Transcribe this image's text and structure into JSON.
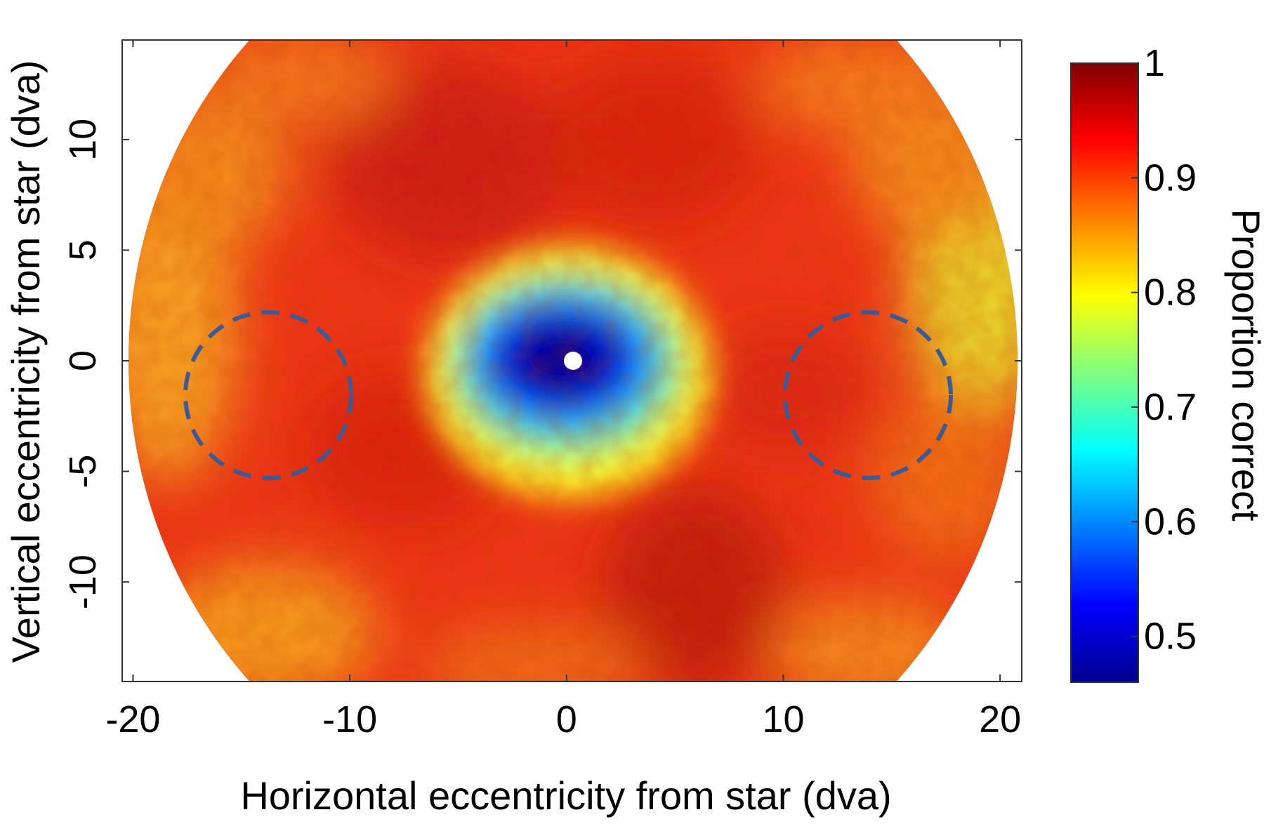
{
  "chart_data": {
    "type": "heatmap",
    "title": "",
    "xlabel": "Horizontal eccentricity from star (dva)",
    "ylabel": "Vertical eccentricity from star (dva)",
    "xlim": [
      -20.5,
      21
    ],
    "ylim": [
      -14.5,
      14.5
    ],
    "x_ticks": [
      -20,
      -10,
      0,
      10,
      20
    ],
    "x_tick_labels": [
      "-20",
      "-10",
      "0",
      "10",
      "20"
    ],
    "y_ticks": [
      -10,
      -5,
      0,
      5,
      10
    ],
    "y_tick_labels": [
      "-10",
      "-5",
      "0",
      "5",
      "10"
    ],
    "data_region": {
      "shape": "disk",
      "center": [
        0,
        0
      ],
      "radius_dva": 20.6
    },
    "colorbar": {
      "label": "Proportion correct",
      "range": [
        0.46,
        1.0
      ],
      "ticks": [
        0.5,
        0.6,
        0.7,
        0.8,
        0.9,
        1
      ],
      "tick_labels": [
        "0.5",
        "0.6",
        "0.7",
        "0.8",
        "0.9",
        "1"
      ],
      "colormap": "jet"
    },
    "features": [
      {
        "name": "central minimum",
        "x": -0.3,
        "y": 0,
        "value": 0.48
      },
      {
        "name": "central high region",
        "x": -4,
        "y": 9,
        "value": 0.95
      },
      {
        "name": "lower high region",
        "x": 5,
        "y": -10,
        "value": 0.96
      },
      {
        "name": "right lateral region",
        "x": 18.5,
        "y": 3,
        "value": 0.78
      },
      {
        "name": "left lateral region",
        "x": -19,
        "y": 1,
        "value": 0.86
      },
      {
        "name": "upper-right band",
        "x": 14,
        "y": 11,
        "value": 0.87
      },
      {
        "name": "lower-left band",
        "x": -13,
        "y": -12,
        "value": 0.86
      }
    ],
    "annotations": [
      {
        "type": "dashed-circle",
        "center": [
          -14,
          -1.5
        ],
        "radius": 3.8,
        "color": "#3a5b96"
      },
      {
        "type": "dashed-circle",
        "center": [
          14,
          -1.5
        ],
        "radius": 3.8,
        "color": "#3a5b96"
      },
      {
        "type": "marker",
        "shape": "dot",
        "x": 0,
        "y": 0,
        "color": "#ffffff"
      }
    ],
    "grid": false,
    "legend": "colorbar-right"
  }
}
